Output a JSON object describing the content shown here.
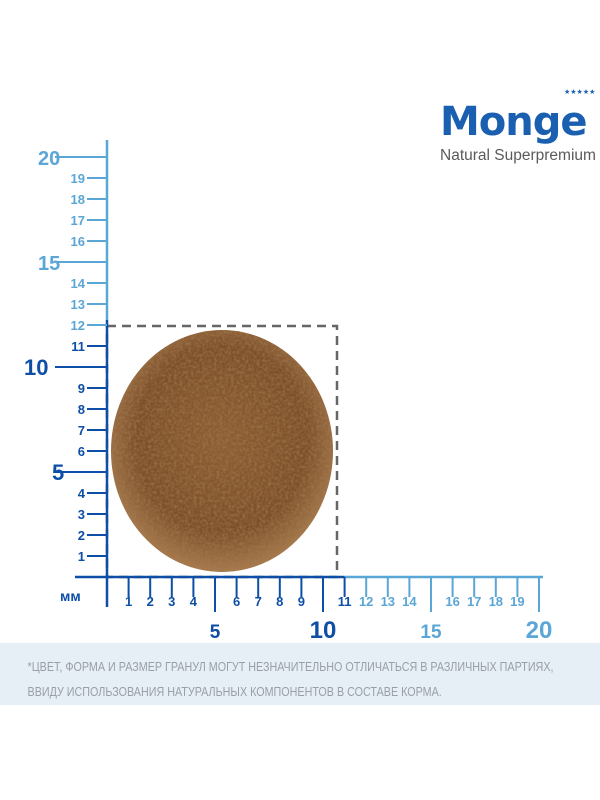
{
  "logo": {
    "brand": "Monge",
    "tagline": "Natural Superpremium"
  },
  "ruler": {
    "unit_label": "мм",
    "kibble_size_mm": 11,
    "dark_color": "#0d4ea6",
    "light_color": "#5aa6d6",
    "kibble_color": "#8a5a2e",
    "vertical_labels": [
      "1",
      "2",
      "3",
      "4",
      "5",
      "6",
      "7",
      "8",
      "9",
      "10",
      "11",
      "12",
      "13",
      "14",
      "15",
      "16",
      "17",
      "18",
      "19",
      "20"
    ],
    "horizontal_labels": [
      "1",
      "2",
      "3",
      "4",
      "5",
      "6",
      "7",
      "8",
      "9",
      "10",
      "11",
      "12",
      "13",
      "14",
      "15",
      "16",
      "17",
      "18",
      "19",
      "20"
    ]
  },
  "note": {
    "line1": "*ЦВЕТ, ФОРМА И РАЗМЕР ГРАНУЛ МОГУТ НЕЗНАЧИТЕЛЬНО ОТЛИЧАТЬСЯ В РАЗЛИЧНЫХ ПАРТИЯХ,",
    "line2": "ВВИДУ ИСПОЛЬЗОВАНИЯ НАТУРАЛЬНЫХ КОМПОНЕНТОВ В СОСТАВЕ КОРМА."
  }
}
